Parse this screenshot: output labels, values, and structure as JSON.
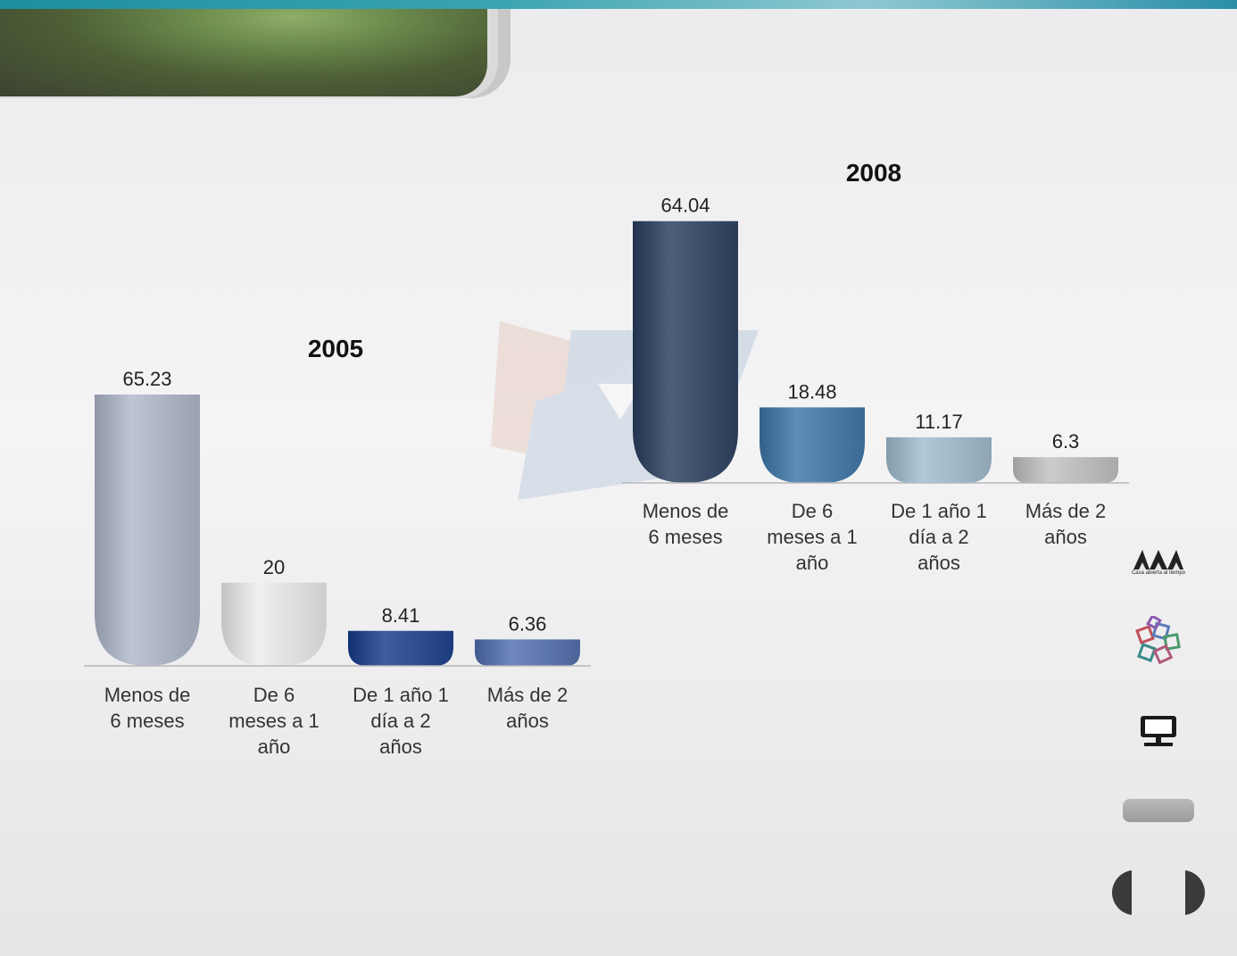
{
  "colors": {
    "top_bar": "#2a9bab",
    "banner": "#5e733f"
  },
  "icons": {
    "uam_logo": "uam-logo",
    "books": "books-icon",
    "monitor": "monitor-icon",
    "prev": "prev-arrow-icon",
    "next": "next-arrow-icon"
  },
  "logo": {
    "tagline": "Casa abierta al tiempo"
  },
  "chart_data": [
    {
      "type": "bar",
      "title": "2005",
      "categories": [
        "Menos de 6 meses",
        "De 6 meses a 1 año",
        "De 1 año 1 día a 2 años",
        "Más de 2 años"
      ],
      "category_lines": [
        [
          "Menos de",
          "6 meses"
        ],
        [
          "De 6",
          "meses a 1",
          "año"
        ],
        [
          "De 1 año 1",
          "día a 2",
          "años"
        ],
        [
          "Más de 2",
          "años"
        ]
      ],
      "values": [
        65.23,
        20,
        8.41,
        6.36
      ],
      "value_labels": [
        "65.23",
        "20",
        "8.41",
        "6.36"
      ],
      "colors": [
        "#a9b0c0",
        "#dcdcdc",
        "#2a4a8c",
        "#5a73a8"
      ],
      "xlabel": "",
      "ylabel": "",
      "grid": false,
      "legend": "none"
    },
    {
      "type": "bar",
      "title": "2008",
      "categories": [
        "Menos de 6 meses",
        "De 6 meses a 1 año",
        "De 1 año 1 día a 2 años",
        "Más de 2 años"
      ],
      "category_lines": [
        [
          "Menos de",
          "6 meses"
        ],
        [
          "De 6",
          "meses a 1",
          "año"
        ],
        [
          "De 1 año 1",
          "día a 2",
          "años"
        ],
        [
          "Más de 2",
          "años"
        ]
      ],
      "values": [
        64.04,
        18.48,
        11.17,
        6.3
      ],
      "value_labels": [
        "64.04",
        "18.48",
        "11.17",
        "6.3"
      ],
      "colors": [
        "#3a4b66",
        "#4a7aa4",
        "#9cb4c4",
        "#b8b8b8"
      ],
      "xlabel": "",
      "ylabel": "",
      "grid": false,
      "legend": "none"
    }
  ]
}
